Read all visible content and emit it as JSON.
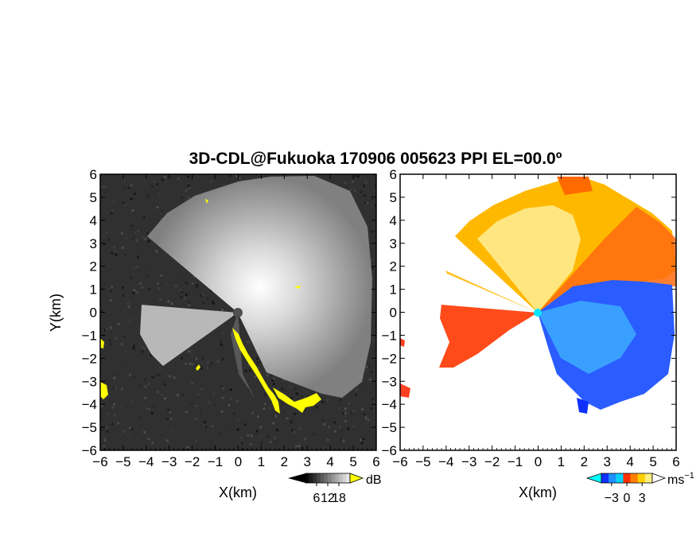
{
  "title": "3D-CDL@Fukuoka 170906 005623 PPI EL=00.0º",
  "chart_data": [
    {
      "type": "heatmap",
      "panel": "reflectivity",
      "xlabel": "X(km)",
      "ylabel": "Y(km)",
      "xlim": [
        -6,
        6
      ],
      "ylim": [
        -6,
        6
      ],
      "xticks": [
        "−6",
        "−5",
        "−4",
        "−3",
        "−2",
        "−1",
        "0",
        "1",
        "2",
        "3",
        "4",
        "5",
        "6"
      ],
      "yticks": [
        "6",
        "5",
        "4",
        "3",
        "2",
        "1",
        "0",
        "−1",
        "−2",
        "−3",
        "−4",
        "−5",
        "−6"
      ],
      "colorbar": {
        "unit": "dB",
        "ticks": [
          "6",
          "12",
          "18"
        ],
        "tick_values": [
          6,
          12,
          18
        ],
        "range": [
          0,
          24
        ],
        "colormap": "grayscale",
        "extend": "both",
        "low_color": "#000000",
        "high_color": "#ffff00"
      },
      "overlay_color": "#ffff00"
    },
    {
      "type": "heatmap",
      "panel": "doppler_velocity",
      "xlabel": "X(km)",
      "xlim": [
        -6,
        6
      ],
      "ylim": [
        -6,
        6
      ],
      "xticks": [
        "−6",
        "−5",
        "−4",
        "−3",
        "−2",
        "−1",
        "0",
        "1",
        "2",
        "3",
        "4",
        "5",
        "6"
      ],
      "colorbar": {
        "unit": "ms",
        "unit_sup": "−1",
        "ticks": [
          "−3",
          "0",
          "3"
        ],
        "tick_values": [
          -3,
          0,
          3
        ],
        "range": [
          -5,
          5
        ],
        "colormap": [
          "#1030ff",
          "#1e90ff",
          "#00d0ff",
          "#ff3000",
          "#ff8000",
          "#ffd000",
          "#fff080"
        ],
        "extend": "both",
        "low_color": "#00ffff",
        "high_color": "#ffffff"
      }
    }
  ]
}
